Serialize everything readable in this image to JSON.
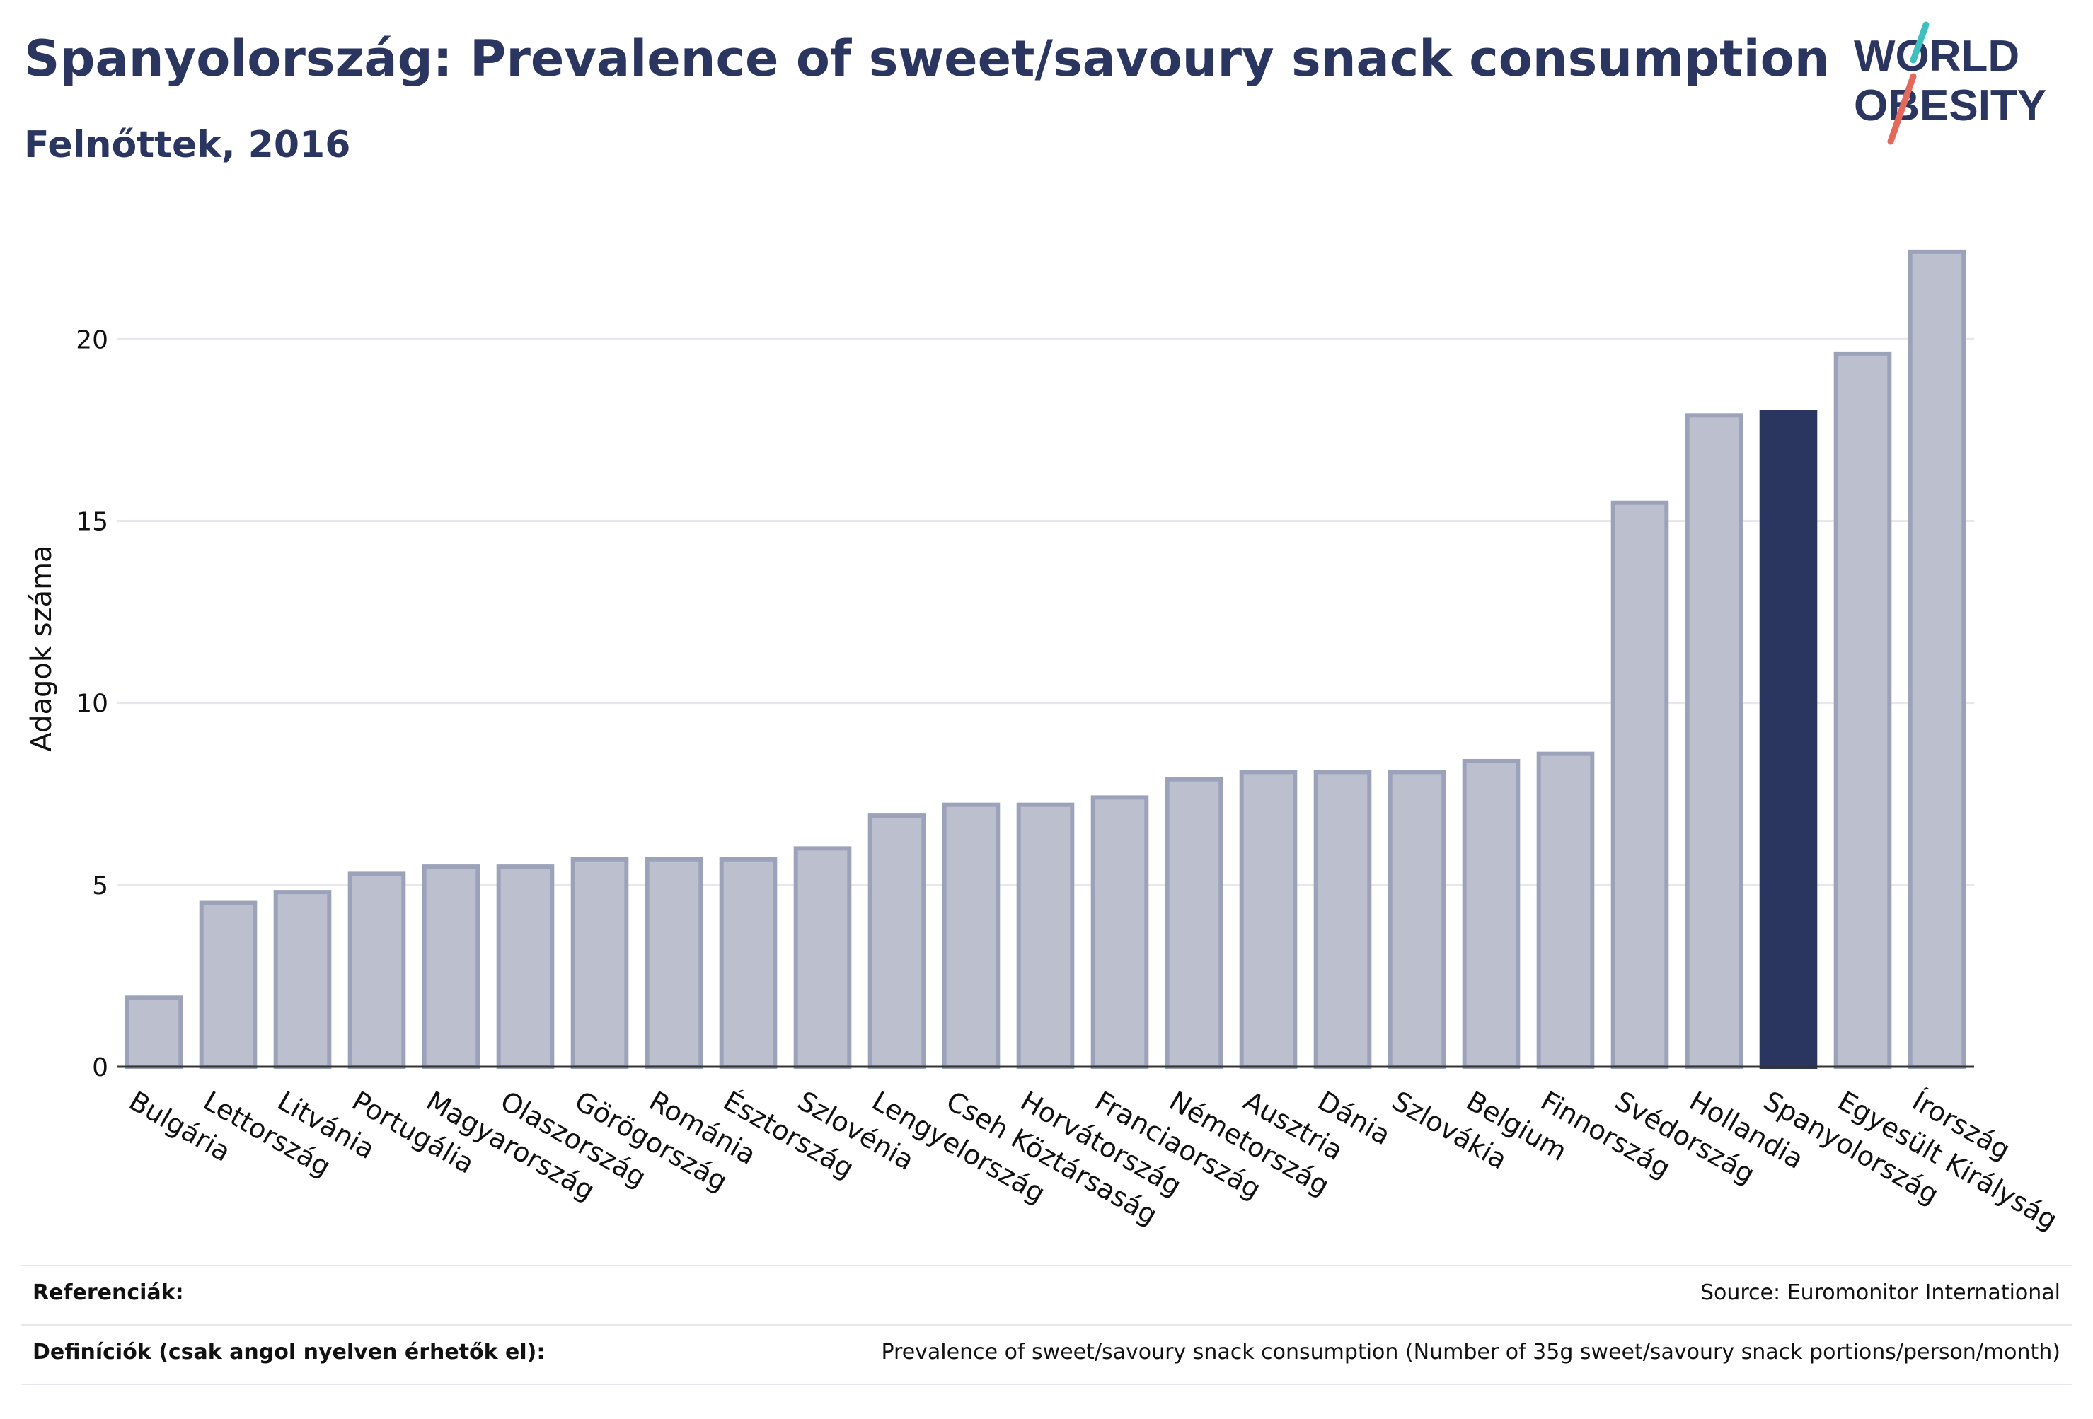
{
  "header": {
    "title": "Spanyolország: Prevalence of sweet/savoury snack consumption",
    "subtitle": "Felnőttek, 2016"
  },
  "logo": {
    "line1": "WORLD",
    "line2": "OBESITY"
  },
  "colors": {
    "bar": "#bcc0ce",
    "bar_outline": "#9ca2b9",
    "highlight": "#2a3560",
    "grid": "#e6e8ee",
    "text": "#111111",
    "logo_teal": "#3fbfbd",
    "logo_red": "#e5695a"
  },
  "chart_data": {
    "type": "bar",
    "ylabel": "Adagok száma",
    "xlabel": "",
    "ylim": [
      0,
      23
    ],
    "yticks": [
      0,
      5,
      10,
      15,
      20
    ],
    "grid": true,
    "highlight": "Spanyolország",
    "categories": [
      "Bulgária",
      "Lettország",
      "Litvánia",
      "Portugália",
      "Magyarország",
      "Olaszország",
      "Görögország",
      "Románia",
      "Észtország",
      "Szlovénia",
      "Lengyelország",
      "Cseh Köztársaság",
      "Horvátország",
      "Franciaország",
      "Németország",
      "Ausztria",
      "Dánia",
      "Szlovákia",
      "Belgium",
      "Finnország",
      "Svédország",
      "Hollandia",
      "Spanyolország",
      "Egyesült Királyság",
      "Írország"
    ],
    "values": [
      1.9,
      4.5,
      4.8,
      5.3,
      5.5,
      5.5,
      5.7,
      5.7,
      5.7,
      6.0,
      6.9,
      7.2,
      7.2,
      7.4,
      7.9,
      8.1,
      8.1,
      8.1,
      8.4,
      8.6,
      15.5,
      17.9,
      18.0,
      19.6,
      22.4
    ]
  },
  "footer": {
    "references_label": "Referenciák:",
    "references_value": "Source: Euromonitor International",
    "definitions_label": "Definíciók (csak angol nyelven érhetők el):",
    "definitions_value": "Prevalence of sweet/savoury snack consumption (Number of 35g sweet/savoury snack portions/person/month)"
  }
}
